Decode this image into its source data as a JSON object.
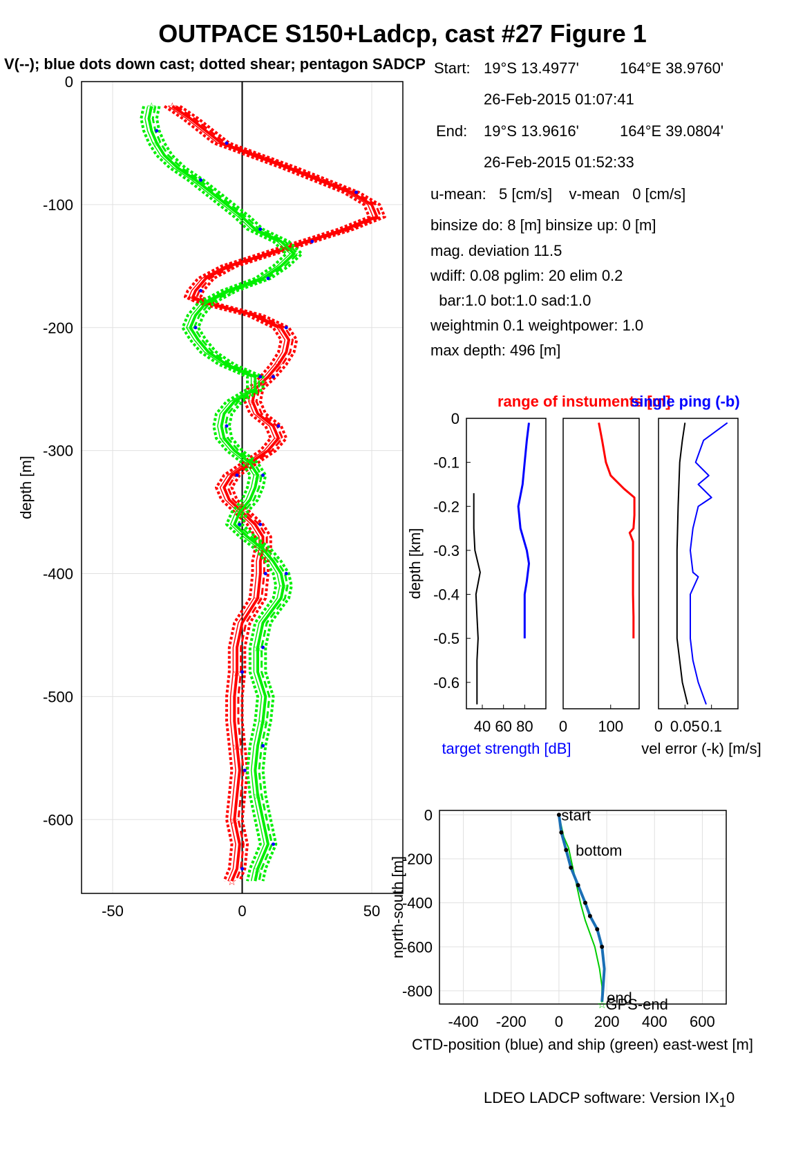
{
  "title": "OUTPACE S150+Ladcp, cast #27  Figure 1",
  "subtitle": "V(--); blue dots down cast; dotted shear; pentagon SADCP",
  "info": {
    "start_label": "Start:",
    "start_lat": "19°S 13.4977'",
    "start_lon": "164°E 38.9760'",
    "start_time": "26-Feb-2015 01:07:41",
    "end_label": "End:",
    "end_lat": "19°S 13.9616'",
    "end_lon": "164°E 39.0804'",
    "end_time": "26-Feb-2015 01:52:33",
    "means": "u-mean:   5 [cm/s]    v-mean   0 [cm/s]",
    "binsize": "binsize do: 8 [m]  binsize up:  0 [m]",
    "mag": "mag. deviation 11.5",
    "wdiff": "wdiff: 0.08  pglim: 20  elim 0.2",
    "bar": "  bar:1.0 bot:1.0 sad:1.0",
    "weight": "weightmin 0.1  weightpower: 1.0",
    "maxdepth": "max depth: 496 [m]"
  },
  "small_titles": {
    "range": "range of instuments [m]",
    "single": "single ping (-b)"
  },
  "footer": {
    "text": "LDEO LADCP software: Version IX",
    "sub": "1",
    "tail": "0"
  },
  "colors": {
    "u": "#ff0000",
    "v": "#00ee00",
    "dots": "#0000ff",
    "ts": "#0000ff",
    "ctd": "#1a6fb5",
    "ship": "#00cc00"
  },
  "chart_data": [
    {
      "type": "line",
      "title": "",
      "xlabel": "",
      "ylabel": "depth [m]",
      "xlim": [
        -62,
        62
      ],
      "ylim": [
        -660,
        0
      ],
      "xticks": [
        "-50",
        "0",
        "50"
      ],
      "yticks": [
        "0",
        "-100",
        "-200",
        "-300",
        "-400",
        "-500",
        "-600"
      ],
      "xtick_values": [
        -50,
        0,
        50
      ],
      "ytick_values": [
        0,
        -100,
        -200,
        -300,
        -400,
        -500,
        -600
      ],
      "series": [
        {
          "color": "#ff0000",
          "depth": [
            -20,
            -30,
            -50,
            -60,
            -70,
            -80,
            -90,
            -100,
            -110,
            -120,
            -130,
            -140,
            -150,
            -160,
            -170,
            -175,
            -180,
            -190,
            -200,
            -210,
            -220,
            -230,
            -240,
            -250,
            -260,
            -270,
            -280,
            -290,
            -300,
            -310,
            -320,
            -330,
            -340,
            -350,
            -360,
            -370,
            -380,
            -390,
            -400,
            -420,
            -440,
            -460,
            -480,
            -500,
            -520,
            -540,
            -560,
            -580,
            -600,
            -620,
            -640,
            -650
          ],
          "values": [
            -27,
            -20,
            -8,
            5,
            18,
            30,
            42,
            50,
            52,
            40,
            25,
            10,
            -5,
            -14,
            -18,
            -19,
            -14,
            5,
            15,
            18,
            17,
            14,
            10,
            5,
            4,
            6,
            12,
            14,
            10,
            3,
            -4,
            -7,
            -5,
            0,
            5,
            8,
            8,
            7,
            7,
            6,
            0,
            -2,
            -2,
            -3,
            -3,
            -2,
            -1,
            -2,
            -3,
            -1,
            -2,
            -4
          ]
        },
        {
          "color": "#00ee00",
          "depth": [
            -20,
            -30,
            -40,
            -50,
            -60,
            -70,
            -80,
            -90,
            -100,
            -110,
            -120,
            -130,
            -140,
            -150,
            -160,
            -170,
            -180,
            -190,
            -200,
            -210,
            -220,
            -230,
            -240,
            -250,
            -260,
            -270,
            -280,
            -290,
            -300,
            -310,
            -320,
            -330,
            -340,
            -350,
            -360,
            -370,
            -380,
            -390,
            -400,
            -410,
            -420,
            -440,
            -460,
            -480,
            -500,
            -520,
            -540,
            -560,
            -580,
            -600,
            -620,
            -640,
            -650
          ],
          "values": [
            -35,
            -36,
            -35,
            -33,
            -30,
            -25,
            -18,
            -12,
            -6,
            0,
            5,
            15,
            20,
            15,
            8,
            -5,
            -14,
            -18,
            -20,
            -17,
            -13,
            -6,
            5,
            5,
            -3,
            -7,
            -8,
            -7,
            -3,
            3,
            6,
            5,
            3,
            -1,
            -3,
            2,
            8,
            12,
            15,
            16,
            15,
            8,
            6,
            6,
            9,
            8,
            6,
            5,
            6,
            8,
            10,
            6,
            5
          ]
        }
      ]
    },
    {
      "type": "line",
      "xlabel": "target strength [dB]",
      "ylabel": "depth [km]",
      "xticks": [
        "40",
        "60",
        "80"
      ],
      "xlim": [
        25,
        100
      ],
      "ylim": [
        -0.66,
        0
      ],
      "yticks": [
        "0",
        "-0.1",
        "-0.2",
        "-0.3",
        "-0.4",
        "-0.5",
        "-0.6"
      ],
      "series": [
        {
          "color": "#0000ff",
          "depth": [
            -0.01,
            -0.05,
            -0.1,
            -0.15,
            -0.2,
            -0.25,
            -0.3,
            -0.33,
            -0.37,
            -0.4,
            -0.45,
            -0.5
          ],
          "values": [
            84,
            82,
            80,
            78,
            74,
            76,
            82,
            84,
            82,
            80,
            80,
            80
          ]
        },
        {
          "color": "#000000",
          "depth": [
            -0.17,
            -0.25,
            -0.3,
            -0.35,
            -0.4,
            -0.45,
            -0.5,
            -0.55,
            -0.6,
            -0.65
          ],
          "values": [
            32,
            32,
            33,
            38,
            34,
            35,
            36,
            35,
            35,
            35
          ]
        }
      ]
    },
    {
      "type": "line",
      "xlabel": "",
      "xticks": [
        "0",
        "100"
      ],
      "xlim": [
        0,
        160
      ],
      "ylim": [
        -0.66,
        0
      ],
      "series": [
        {
          "color": "#ff0000",
          "depth": [
            -0.01,
            -0.05,
            -0.1,
            -0.13,
            -0.16,
            -0.18,
            -0.22,
            -0.25,
            -0.26,
            -0.28,
            -0.35,
            -0.4,
            -0.45,
            -0.5
          ],
          "values": [
            75,
            82,
            90,
            100,
            128,
            150,
            150,
            148,
            140,
            147,
            147,
            147,
            148,
            148
          ]
        }
      ]
    },
    {
      "type": "line",
      "xlabel": "vel error (-k) [m/s]",
      "xticks": [
        "0",
        "0.05",
        "0.1"
      ],
      "xlim": [
        0,
        0.15
      ],
      "ylim": [
        -0.66,
        0
      ],
      "series": [
        {
          "color": "#000000",
          "depth": [
            -0.01,
            -0.05,
            -0.1,
            -0.2,
            -0.3,
            -0.4,
            -0.5,
            -0.6,
            -0.65
          ],
          "values": [
            0.05,
            0.045,
            0.04,
            0.037,
            0.035,
            0.035,
            0.035,
            0.045,
            0.055
          ]
        },
        {
          "color": "#0000ff",
          "depth": [
            -0.01,
            -0.05,
            -0.1,
            -0.13,
            -0.15,
            -0.18,
            -0.2,
            -0.25,
            -0.3,
            -0.35,
            -0.36,
            -0.4,
            -0.5,
            -0.55,
            -0.6,
            -0.65
          ],
          "values": [
            0.13,
            0.085,
            0.07,
            0.095,
            0.075,
            0.1,
            0.075,
            0.065,
            0.06,
            0.065,
            0.075,
            0.06,
            0.06,
            0.065,
            0.075,
            0.09
          ]
        }
      ]
    },
    {
      "type": "line",
      "xlabel": "CTD-position (blue) and ship (green) east-west [m]",
      "ylabel": "north-south [m]",
      "xticks": [
        "-400",
        "-200",
        "0",
        "200",
        "400",
        "600"
      ],
      "yticks": [
        "0",
        "-200",
        "-400",
        "-600",
        "-800"
      ],
      "xlim": [
        -500,
        700
      ],
      "ylim": [
        -860,
        20
      ],
      "annotations": [
        "start",
        "bottom",
        "end",
        "GPS-end"
      ],
      "series": [
        {
          "color": "#1a6fb5",
          "x": [
            0,
            10,
            30,
            50,
            80,
            110,
            130,
            160,
            180,
            190,
            185,
            180
          ],
          "y": [
            0,
            -80,
            -160,
            -240,
            -320,
            -400,
            -460,
            -520,
            -600,
            -700,
            -780,
            -850
          ]
        },
        {
          "color": "#00cc00",
          "x": [
            0,
            20,
            40,
            50,
            70,
            90,
            110,
            150,
            170,
            180,
            180
          ],
          "y": [
            0,
            -100,
            -150,
            -200,
            -300,
            -400,
            -480,
            -600,
            -700,
            -780,
            -850
          ]
        }
      ]
    }
  ]
}
